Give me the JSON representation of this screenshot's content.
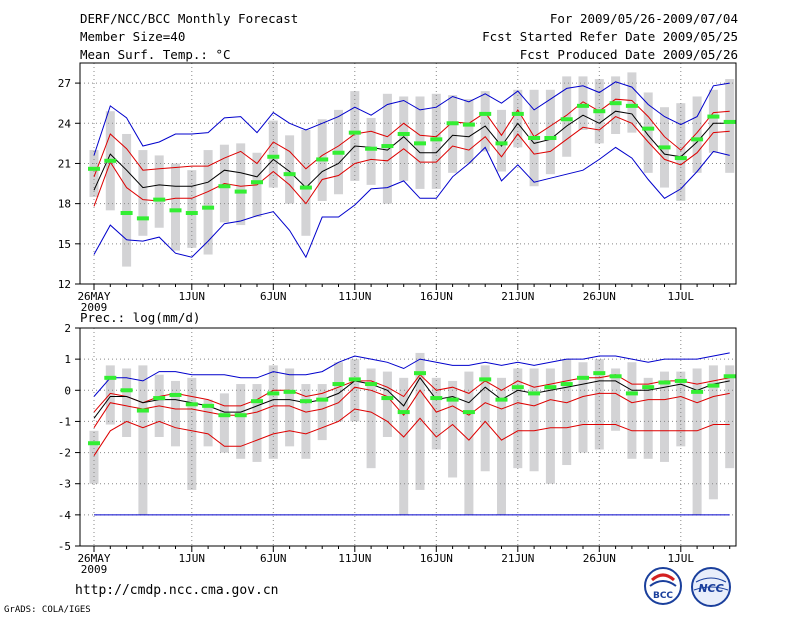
{
  "header": {
    "title": "DERF/NCC/BCC Monthly Forecast",
    "member_size": "Member Size=40",
    "variable": "Mean Surf. Temp.: °C",
    "period": "For 2009/05/26-2009/07/04",
    "refer_date": "Fcst Started Refer Date 2009/05/25",
    "produced_date": "Fcst Produced Date 2009/05/26"
  },
  "footer": {
    "url": "http://cmdp.ncc.cma.gov.cn",
    "grads": "GrADS: COLA/IGES",
    "logo_left_text": "BCC",
    "logo_right_text": "NCC"
  },
  "colors": {
    "box": "#d3d3d5",
    "median": "#33ee33",
    "mean": "#000000",
    "spread": "#dd0000",
    "extreme": "#0000cc",
    "grid": "#888888"
  },
  "chart_data": [
    {
      "type": "box-line",
      "title": "Mean Surf. Temp.: °C",
      "x_tick_labels": [
        "26MAY",
        "1JUN",
        "6JUN",
        "11JUN",
        "16JUN",
        "21JUN",
        "26JUN",
        "1JUL"
      ],
      "x_tick_days": [
        0,
        6,
        11,
        16,
        21,
        26,
        31,
        36
      ],
      "year_label": "2009",
      "ylim": [
        12,
        28.5
      ],
      "y_ticks": [
        12,
        15,
        18,
        21,
        24,
        27
      ],
      "median": [
        20.6,
        21.2,
        17.3,
        16.9,
        18.3,
        17.5,
        17.3,
        17.7,
        19.3,
        18.9,
        19.6,
        21.5,
        20.2,
        19.2,
        21.3,
        21.8,
        23.3,
        22.1,
        22.3,
        23.2,
        22.5,
        22.8,
        24,
        23.9,
        24.7,
        22.5,
        24.7,
        22.9,
        22.9,
        24.3,
        25.3,
        24.9,
        25.5,
        25.3,
        23.6,
        22.2,
        21.4,
        22.8,
        24.5,
        24.1
      ],
      "box_low": [
        18.5,
        17.5,
        13.3,
        15.6,
        16.2,
        14.5,
        14.7,
        14.2,
        16.6,
        16.4,
        17,
        19.2,
        18,
        15.6,
        18.2,
        18.7,
        19.7,
        19.4,
        18,
        19.7,
        19.1,
        19.1,
        20.3,
        21,
        21.9,
        20.4,
        22.2,
        19.3,
        20.2,
        21.5,
        23.5,
        22.5,
        23.2,
        23.3,
        20.3,
        19.2,
        18.2,
        20.3,
        21.8,
        20.3
      ],
      "box_high": [
        22,
        24.9,
        23.2,
        22,
        21.6,
        21,
        20.5,
        22,
        22.4,
        22.5,
        21.8,
        24.2,
        23.1,
        23.5,
        24.3,
        25,
        26.4,
        24.4,
        26.2,
        26,
        26,
        26.2,
        26.1,
        25.8,
        26.4,
        25,
        26.5,
        26.5,
        26.5,
        27.5,
        27.5,
        27.3,
        27.5,
        27.8,
        26.3,
        25.2,
        25.5,
        26,
        26.5,
        27.3
      ],
      "series": [
        {
          "name": "max",
          "color_key": "extreme",
          "values": [
            14.2,
            16.4,
            15.3,
            15.2,
            15.5,
            14.3,
            14.0,
            15.2,
            16.5,
            16.7,
            17.1,
            17.4,
            16.0,
            14.0,
            17.0,
            17.0,
            17.9,
            19.1,
            19.2,
            19.7,
            18.4,
            18.4,
            20.0,
            21.0,
            22.2,
            19.7,
            20.9,
            19.6,
            19.9,
            20.2,
            20.5,
            21.3,
            22.2,
            21.4,
            19.8,
            18.4,
            19.1,
            20.4,
            21.9,
            21.6
          ]
        },
        {
          "name": "min",
          "color_key": "extreme",
          "values": [
            21.6,
            25.3,
            24.4,
            22.3,
            22.6,
            23.2,
            23.2,
            23.3,
            24.4,
            24.5,
            23.3,
            24.8,
            24.0,
            23.5,
            24.0,
            24.5,
            25.2,
            24.6,
            25.4,
            25.7,
            25.0,
            25.2,
            26.0,
            25.6,
            26.2,
            25.5,
            26.4,
            25.0,
            25.8,
            26.6,
            26.8,
            26.3,
            27.1,
            26.7,
            25.4,
            24.5,
            23.9,
            24.5,
            26.8,
            27.0
          ]
        },
        {
          "name": "upper",
          "color_key": "spread",
          "values": [
            20.0,
            23.2,
            22.1,
            20.5,
            20.6,
            20.7,
            20.8,
            20.8,
            21.4,
            21.9,
            21.0,
            22.6,
            21.9,
            20.6,
            21.6,
            22.3,
            23.2,
            23.4,
            23.0,
            24.0,
            23.1,
            23.0,
            24.1,
            24.0,
            24.8,
            23.1,
            25.0,
            23.0,
            23.8,
            24.6,
            25.6,
            24.9,
            25.8,
            25.7,
            24.5,
            23.0,
            22.0,
            23.3,
            24.8,
            24.9
          ]
        },
        {
          "name": "mean",
          "color_key": "mean",
          "values": [
            19.0,
            21.7,
            20.5,
            19.2,
            19.4,
            19.3,
            19.3,
            19.6,
            20.5,
            20.3,
            20.0,
            21.3,
            20.4,
            19.2,
            20.4,
            21.0,
            22.3,
            22.2,
            22.0,
            23.0,
            21.8,
            21.8,
            23.1,
            23.0,
            23.8,
            22.3,
            24.0,
            22.5,
            22.8,
            23.8,
            24.6,
            24.0,
            24.9,
            24.7,
            23.1,
            21.7,
            21.5,
            22.6,
            24.0,
            24.0
          ]
        },
        {
          "name": "lower",
          "color_key": "spread",
          "values": [
            17.8,
            21.1,
            19.2,
            18.3,
            18.2,
            18.4,
            18.4,
            18.9,
            19.5,
            19.3,
            19.4,
            20.4,
            19.4,
            18.0,
            19.8,
            20.1,
            21.0,
            21.3,
            21.2,
            22.1,
            21.1,
            21.1,
            22.3,
            22.0,
            23.0,
            21.5,
            23.2,
            21.7,
            21.9,
            22.8,
            23.7,
            23.5,
            24.5,
            24.0,
            22.6,
            21.3,
            20.9,
            21.8,
            23.3,
            23.4
          ]
        }
      ]
    },
    {
      "type": "box-line",
      "title": "Prec.: log(mm/d)",
      "x_tick_labels": [
        "26MAY",
        "1JUN",
        "6JUN",
        "11JUN",
        "16JUN",
        "21JUN",
        "26JUN",
        "1JUL"
      ],
      "x_tick_days": [
        0,
        6,
        11,
        16,
        21,
        26,
        31,
        36
      ],
      "year_label": "2009",
      "ylim": [
        -5,
        2
      ],
      "y_ticks": [
        -5,
        -4,
        -3,
        -2,
        -1,
        0,
        1,
        2
      ],
      "median": [
        -1.7,
        0.4,
        0,
        -0.65,
        -0.25,
        -0.15,
        -0.45,
        -0.5,
        -0.8,
        -0.8,
        -0.35,
        -0.1,
        -0.05,
        -0.35,
        -0.3,
        0.2,
        0.35,
        0.2,
        -0.25,
        -0.7,
        0.55,
        -0.25,
        -0.3,
        -0.7,
        0.35,
        -0.3,
        0.1,
        -0.1,
        0.1,
        0.2,
        0.4,
        0.55,
        0.45,
        -0.1,
        0.1,
        0.25,
        0.3,
        -0.05,
        0.15,
        0.45
      ],
      "box_low": [
        -3,
        -1.1,
        -1.5,
        -4,
        -1.5,
        -1.8,
        -3.2,
        -1.8,
        -2,
        -2.2,
        -2.3,
        -2.2,
        -1.8,
        -2.2,
        -1.6,
        -1,
        -1,
        -2.5,
        -1.5,
        -4,
        -3.2,
        -1.9,
        -2.8,
        -4,
        -2.6,
        -4,
        -2.5,
        -2.6,
        -3,
        -2.4,
        -2,
        -1.9,
        -1.3,
        -2.2,
        -2.2,
        -2.3,
        -1.8,
        -4,
        -3.5,
        -2.5
      ],
      "box_high": [
        -1.3,
        0.8,
        0.7,
        0.8,
        0.5,
        0.3,
        0.4,
        -0.3,
        -0.1,
        0.2,
        0.2,
        0.8,
        0.7,
        0.2,
        0.2,
        0.9,
        1,
        0.7,
        0.6,
        0.4,
        1.2,
        0.4,
        0.3,
        0.6,
        0.8,
        0.4,
        0.7,
        0.7,
        0.7,
        1,
        0.9,
        1,
        0.7,
        0.9,
        0.4,
        0.6,
        0.6,
        0.7,
        0.8,
        0.8
      ],
      "series": [
        {
          "name": "max",
          "color_key": "extreme",
          "values": [
            -0.2,
            0.4,
            0.4,
            0.3,
            0.6,
            0.6,
            0.5,
            0.5,
            0.5,
            0.4,
            0.4,
            0.6,
            0.5,
            0.5,
            0.6,
            0.9,
            1.1,
            1.0,
            0.9,
            0.7,
            1.0,
            0.9,
            0.8,
            0.8,
            0.9,
            0.8,
            0.9,
            0.8,
            0.9,
            1.0,
            1.0,
            1.1,
            1.1,
            1.0,
            0.9,
            1.0,
            1.0,
            1.0,
            1.1,
            1.2
          ]
        },
        {
          "name": "upper",
          "color_key": "spread",
          "values": [
            -0.7,
            -0.1,
            -0.2,
            -0.4,
            -0.2,
            -0.1,
            -0.2,
            -0.3,
            -0.5,
            -0.5,
            -0.3,
            0.0,
            0.0,
            -0.2,
            -0.1,
            0.1,
            0.3,
            0.3,
            0.1,
            -0.2,
            0.5,
            0.0,
            0.1,
            -0.1,
            0.3,
            0.0,
            0.3,
            0.1,
            0.2,
            0.3,
            0.4,
            0.4,
            0.5,
            0.2,
            0.2,
            0.3,
            0.3,
            0.2,
            0.3,
            0.4
          ]
        },
        {
          "name": "mean",
          "color_key": "mean",
          "values": [
            -0.9,
            -0.2,
            -0.2,
            -0.4,
            -0.3,
            -0.3,
            -0.4,
            -0.5,
            -0.7,
            -0.7,
            -0.5,
            -0.3,
            -0.3,
            -0.4,
            -0.3,
            -0.1,
            0.3,
            0.2,
            0.0,
            -0.5,
            0.4,
            -0.3,
            -0.2,
            -0.4,
            0.1,
            -0.3,
            0.0,
            -0.1,
            0.0,
            0.1,
            0.2,
            0.3,
            0.3,
            0.0,
            0.0,
            0.1,
            0.2,
            0.0,
            0.2,
            0.3
          ]
        },
        {
          "name": "lower",
          "color_key": "spread",
          "values": [
            -1.2,
            -0.4,
            -0.5,
            -0.6,
            -0.5,
            -0.6,
            -0.6,
            -0.7,
            -0.8,
            -0.8,
            -0.7,
            -0.5,
            -0.5,
            -0.7,
            -0.6,
            -0.4,
            0.1,
            0.0,
            -0.2,
            -0.8,
            0.0,
            -0.7,
            -0.5,
            -0.8,
            -0.4,
            -0.6,
            -0.4,
            -0.5,
            -0.3,
            -0.4,
            -0.2,
            -0.1,
            -0.1,
            -0.4,
            -0.3,
            -0.3,
            -0.2,
            -0.4,
            -0.2,
            -0.1
          ]
        },
        {
          "name": "min",
          "color_key": "spread",
          "values": [
            -2.1,
            -1.3,
            -1.0,
            -1.2,
            -1.0,
            -1.2,
            -1.3,
            -1.4,
            -1.8,
            -1.8,
            -1.6,
            -1.4,
            -1.3,
            -1.4,
            -1.2,
            -1.0,
            -0.6,
            -0.7,
            -1.0,
            -1.5,
            -0.9,
            -1.5,
            -1.1,
            -1.6,
            -1.0,
            -1.6,
            -1.3,
            -1.3,
            -1.2,
            -1.2,
            -1.1,
            -1.1,
            -1.1,
            -1.3,
            -1.3,
            -1.3,
            -1.3,
            -1.3,
            -1.1,
            -1.1
          ]
        },
        {
          "name": "floor",
          "color_key": "extreme",
          "values": [
            -4,
            -4,
            -4,
            -4,
            -4,
            -4,
            -4,
            -4,
            -4,
            -4,
            -4,
            -4,
            -4,
            -4,
            -4,
            -4,
            -4,
            -4,
            -4,
            -4,
            -4,
            -4,
            -4,
            -4,
            -4,
            -4,
            -4,
            -4,
            -4,
            -4,
            -4,
            -4,
            -4,
            -4,
            -4,
            -4,
            -4,
            -4,
            -4,
            -4
          ]
        }
      ]
    }
  ]
}
